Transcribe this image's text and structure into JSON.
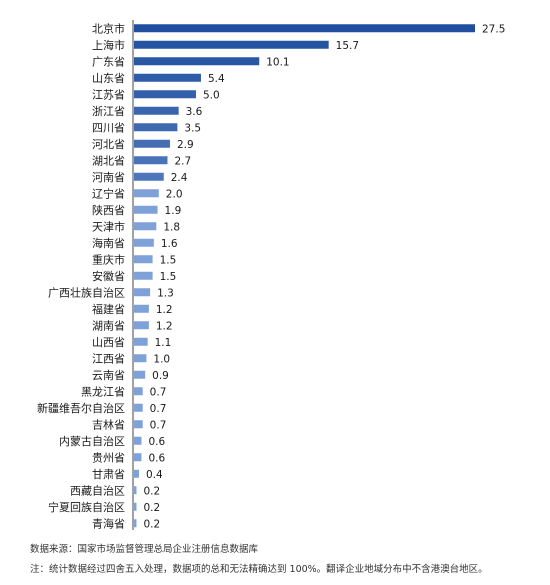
{
  "chart_data": {
    "type": "bar",
    "orientation": "horizontal",
    "categories": [
      "北京市",
      "上海市",
      "广东省",
      "山东省",
      "江苏省",
      "浙江省",
      "四川省",
      "河北省",
      "湖北省",
      "河南省",
      "辽宁省",
      "陕西省",
      "天津市",
      "海南省",
      "重庆市",
      "安徽省",
      "广西壮族自治区",
      "福建省",
      "湖南省",
      "山西省",
      "江西省",
      "云南省",
      "黑龙江省",
      "新疆维吾尔自治区",
      "吉林省",
      "内蒙古自治区",
      "贵州省",
      "甘肃省",
      "西藏自治区",
      "宁夏回族自治区",
      "青海省"
    ],
    "values": [
      27.5,
      15.7,
      10.1,
      5.4,
      5.0,
      3.6,
      3.5,
      2.9,
      2.7,
      2.4,
      2.0,
      1.9,
      1.8,
      1.6,
      1.5,
      1.5,
      1.3,
      1.2,
      1.2,
      1.1,
      1.0,
      0.9,
      0.7,
      0.7,
      0.7,
      0.6,
      0.6,
      0.4,
      0.2,
      0.2,
      0.2
    ],
    "value_labels": [
      "27.5",
      "15.7",
      "10.1",
      "5.4",
      "5.0",
      "3.6",
      "3.5",
      "2.9",
      "2.7",
      "2.4",
      "2.0",
      "1.9",
      "1.8",
      "1.6",
      "1.5",
      "1.5",
      "1.3",
      "1.2",
      "1.2",
      "1.1",
      "1.0",
      "0.9",
      "0.7",
      "0.7",
      "0.7",
      "0.6",
      "0.6",
      "0.4",
      "0.2",
      "0.2",
      "0.2"
    ],
    "title": "",
    "xlabel": "",
    "ylabel": "",
    "xlim": [
      0,
      27.5
    ],
    "grid": false,
    "colors": {
      "dark": "#1f4e9e",
      "light": "#7ea1d8",
      "axis": "#444444"
    }
  },
  "footnotes": {
    "source": "数据来源：国家市场监督管理总局企业注册信息数据库",
    "remark": "注：统计数据经过四舍五入处理，数据项的总和无法精确达到 100%。翻译企业地域分布中不含港澳台地区。"
  }
}
